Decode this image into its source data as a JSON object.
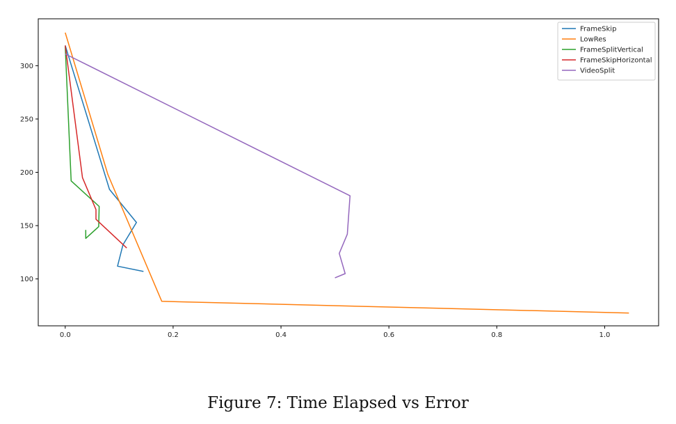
{
  "caption": "Figure 7: Time Elapsed vs Error",
  "chart_data": {
    "type": "line",
    "title": "",
    "xlabel": "",
    "ylabel": "",
    "xlim": [
      -0.05,
      1.1
    ],
    "ylim": [
      56,
      344
    ],
    "xticks": [
      0.0,
      0.2,
      0.4,
      0.6,
      0.8,
      1.0
    ],
    "xtick_labels": [
      "0.0",
      "0.2",
      "0.4",
      "0.6",
      "0.8",
      "1.0"
    ],
    "yticks": [
      100,
      150,
      200,
      250,
      300
    ],
    "ytick_labels": [
      "100",
      "150",
      "200",
      "250",
      "300"
    ],
    "grid": false,
    "legend_position": "top-right",
    "series": [
      {
        "name": "FrameSkip",
        "color": "#1f77b4",
        "x": [
          0.0,
          0.082,
          0.132,
          0.107,
          0.097,
          0.145
        ],
        "y": [
          319,
          184,
          153,
          132,
          112,
          107
        ]
      },
      {
        "name": "LowRes",
        "color": "#ff7f0e",
        "x": [
          0.0,
          0.079,
          0.179,
          1.045
        ],
        "y": [
          331,
          198,
          79,
          68
        ]
      },
      {
        "name": "FrameSplitVertical",
        "color": "#2ca02c",
        "x": [
          0.0,
          0.011,
          0.063,
          0.062,
          0.038,
          0.038
        ],
        "y": [
          318,
          192,
          168,
          149,
          138,
          146
        ]
      },
      {
        "name": "FrameSkipHorizontal",
        "color": "#d62728",
        "x": [
          0.0,
          0.032,
          0.057,
          0.057,
          0.114
        ],
        "y": [
          319,
          195,
          165,
          156,
          129
        ]
      },
      {
        "name": "VideoSplit",
        "color": "#9467bd",
        "x": [
          0.0,
          0.528,
          0.523,
          0.508,
          0.519,
          0.5
        ],
        "y": [
          311,
          178,
          142,
          124,
          105,
          101
        ]
      }
    ]
  }
}
